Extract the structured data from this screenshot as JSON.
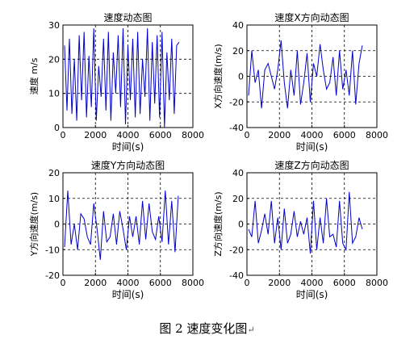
{
  "caption": {
    "text": "图 2  速度变化图",
    "mark": "↵"
  },
  "chart_data": [
    {
      "type": "line",
      "title": "速度动态图",
      "xlabel": "时间(s)",
      "ylabel": "速度 m/s",
      "xlim": [
        0,
        8000
      ],
      "ylim": [
        0,
        30
      ],
      "xticks": [
        0,
        2000,
        4000,
        6000,
        8000
      ],
      "yticks": [
        0,
        10,
        20,
        30
      ],
      "grid": "dashed",
      "color": "#0000cc",
      "series": [
        {
          "x": [
            100,
            250,
            400,
            550,
            700,
            850,
            1000,
            1150,
            1300,
            1450,
            1600,
            1750,
            1900,
            2050,
            2200,
            2350,
            2500,
            2650,
            2800,
            2950,
            3100,
            3250,
            3400,
            3550,
            3700,
            3850,
            4000,
            4150,
            4300,
            4450,
            4600,
            4750,
            4900,
            5050,
            5200,
            5350,
            5500,
            5650,
            5800,
            5950,
            6100,
            6250,
            6400,
            6550,
            6700,
            6850,
            7000,
            7150
          ],
          "y": [
            24,
            5,
            26,
            4,
            20,
            2,
            27,
            8,
            28,
            3,
            21,
            6,
            29,
            2,
            18,
            9,
            26,
            5,
            28,
            2,
            22,
            10,
            27,
            6,
            29,
            1,
            24,
            8,
            26,
            3,
            28,
            4,
            20,
            9,
            29,
            2,
            25,
            7,
            27,
            3,
            28,
            0,
            22,
            8,
            26,
            4,
            24,
            25
          ]
        }
      ]
    },
    {
      "type": "line",
      "title": "速度X方向动态图",
      "xlabel": "时间(s)",
      "ylabel": "X方向速度(m/s)",
      "xlim": [
        0,
        8000
      ],
      "ylim": [
        -40,
        40
      ],
      "xticks": [
        0,
        2000,
        4000,
        6000,
        8000
      ],
      "yticks": [
        -40,
        -20,
        0,
        20,
        40
      ],
      "grid": "dashed",
      "color": "#0000cc",
      "series": [
        {
          "x": [
            100,
            300,
            500,
            700,
            900,
            1100,
            1300,
            1500,
            1700,
            1900,
            2100,
            2300,
            2500,
            2700,
            2900,
            3100,
            3300,
            3500,
            3700,
            3900,
            4100,
            4300,
            4500,
            4700,
            4900,
            5100,
            5300,
            5500,
            5700,
            5900,
            6100,
            6300,
            6500,
            6700,
            6900,
            7100
          ],
          "y": [
            -15,
            20,
            -5,
            5,
            -25,
            5,
            10,
            0,
            -10,
            5,
            28,
            -5,
            -25,
            5,
            -15,
            20,
            -22,
            -5,
            18,
            -20,
            10,
            0,
            25,
            5,
            -10,
            -5,
            15,
            -15,
            20,
            -10,
            5,
            -15,
            20,
            -22,
            10,
            24
          ]
        }
      ]
    },
    {
      "type": "line",
      "title": "速度Y方向动态图",
      "xlabel": "时间(s)",
      "ylabel": "Y方向速度(m/s)",
      "xlim": [
        0,
        8000
      ],
      "ylim": [
        -20,
        20
      ],
      "xticks": [
        0,
        2000,
        4000,
        6000,
        8000
      ],
      "yticks": [
        -20,
        -10,
        0,
        10,
        20
      ],
      "grid": "dashed",
      "color": "#0000cc",
      "series": [
        {
          "x": [
            100,
            300,
            500,
            700,
            900,
            1100,
            1300,
            1500,
            1700,
            1900,
            2100,
            2300,
            2500,
            2700,
            2900,
            3100,
            3300,
            3500,
            3700,
            3900,
            4100,
            4300,
            4500,
            4700,
            4900,
            5100,
            5300,
            5500,
            5700,
            5900,
            6100,
            6300,
            6500,
            6700,
            6900,
            7100
          ],
          "y": [
            -9,
            13,
            -8,
            0,
            -10,
            4,
            2,
            -5,
            -8,
            8,
            -2,
            -14,
            5,
            -7,
            -5,
            4,
            -8,
            5,
            -2,
            -10,
            3,
            -5,
            3,
            -8,
            9,
            -6,
            8,
            -3,
            -6,
            3,
            -7,
            13,
            -8,
            9,
            -11,
            11
          ]
        }
      ]
    },
    {
      "type": "line",
      "title": "速度Z方向动态图",
      "xlabel": "时间(s)",
      "ylabel": "Z方向速度(m/s)",
      "xlim": [
        0,
        8000
      ],
      "ylim": [
        -40,
        40
      ],
      "xticks": [
        0,
        2000,
        4000,
        6000,
        8000
      ],
      "yticks": [
        -40,
        -20,
        0,
        20,
        40
      ],
      "grid": "dashed",
      "color": "#0000cc",
      "series": [
        {
          "x": [
            100,
            300,
            500,
            700,
            900,
            1100,
            1300,
            1500,
            1700,
            1900,
            2100,
            2300,
            2500,
            2700,
            2900,
            3100,
            3300,
            3500,
            3700,
            3900,
            4100,
            4300,
            4500,
            4700,
            4900,
            5100,
            5300,
            5500,
            5700,
            5900,
            6100,
            6300,
            6500,
            6700,
            6900,
            7100
          ],
          "y": [
            -4,
            -10,
            18,
            -15,
            -5,
            8,
            -8,
            18,
            -15,
            5,
            -20,
            12,
            -15,
            -8,
            10,
            -10,
            2,
            -8,
            5,
            -23,
            18,
            -20,
            5,
            -15,
            20,
            -10,
            -8,
            -18,
            18,
            -15,
            -20,
            25,
            -15,
            -10,
            5,
            -4
          ]
        }
      ]
    }
  ]
}
